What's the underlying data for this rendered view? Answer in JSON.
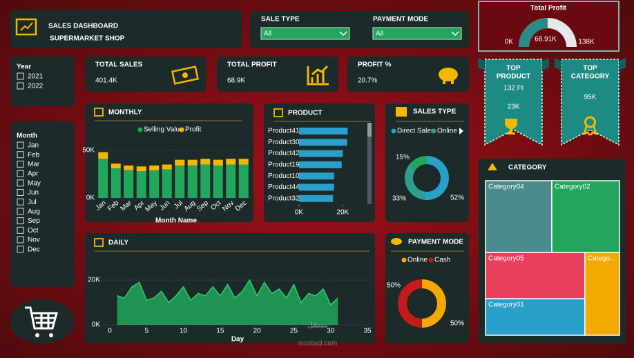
{
  "header": {
    "title": "SALES DASHBOARD",
    "subtitle": "SUPERMARKET SHOP"
  },
  "filters": [
    {
      "label": "SALE TYPE",
      "value": "All"
    },
    {
      "label": "PAYMENT MODE",
      "value": "All"
    }
  ],
  "gauge": {
    "title": "Total Profit",
    "min": 0,
    "max": 138,
    "value": 68.91,
    "min_label": "0K",
    "max_label": "138K",
    "value_label": "68.91K",
    "color": "#2a8a8a"
  },
  "year": {
    "title": "Year",
    "options": [
      "2021",
      "2022"
    ]
  },
  "month": {
    "title": "Month",
    "options": [
      "Jan",
      "Feb",
      "Mar",
      "Apr",
      "May",
      "Jun",
      "Jul",
      "Aug",
      "Sep",
      "Oct",
      "Nov",
      "Dec"
    ]
  },
  "kpis": [
    {
      "label": "TOTAL SALES",
      "value": "401.4K"
    },
    {
      "label": "TOTAL PROFIT",
      "value": "68.9K"
    },
    {
      "label": "PROFIT %",
      "value": "20.7%"
    }
  ],
  "top_product": {
    "title": [
      "TOP",
      "PRODUCT"
    ],
    "name": "132  Ft",
    "value": "23K"
  },
  "top_category": {
    "title": [
      "TOP",
      "CATEGORY"
    ],
    "value": "95K"
  },
  "monthly": {
    "title": "MONTHLY",
    "type": "bar",
    "stacked": true,
    "categories": [
      "Jan",
      "Feb",
      "Mar",
      "Apr",
      "May",
      "Jun",
      "Jul",
      "Aug",
      "Sep",
      "Oct",
      "Nov",
      "Dec"
    ],
    "series": [
      {
        "name": "Selling Value",
        "color": "#21a65b",
        "values": [
          41,
          31,
          29,
          28,
          29,
          30,
          34,
          34,
          35,
          34,
          35,
          35
        ]
      },
      {
        "name": "Profit",
        "color": "#f5b800",
        "values": [
          7,
          5,
          5,
          5,
          5,
          5,
          6,
          6,
          6,
          6,
          6,
          6
        ]
      }
    ],
    "x_label": "Month Name",
    "ylim": [
      0,
      65
    ],
    "yticks": [
      {
        "value": 0,
        "label": "0K"
      },
      {
        "value": 50,
        "label": "50K"
      }
    ]
  },
  "product": {
    "title": "PRODUCT",
    "type": "bar",
    "orientation": "horizontal",
    "categories": [
      "Product41",
      "Product30",
      "Product42",
      "Product19",
      "Product10",
      "Product44",
      "Product32"
    ],
    "values": [
      22.2,
      22,
      20,
      19.5,
      16,
      16,
      15.5
    ],
    "color": "#2a9fc9",
    "xlim": [
      0,
      30
    ],
    "xticks": [
      {
        "value": 0,
        "label": "0K"
      },
      {
        "value": 20,
        "label": "20K"
      }
    ]
  },
  "sales_type": {
    "title": "SALES TYPE",
    "type": "pie",
    "donut": true,
    "names": [
      "Direct Sales",
      "Online",
      null
    ],
    "values": [
      52,
      33,
      15
    ],
    "value_labels": [
      "52%",
      "33%",
      "15%"
    ],
    "colors": [
      "#2a9fc9",
      "#2e9e8e",
      "#21a65b"
    ]
  },
  "payment": {
    "title": "PAYMENT MODE",
    "type": "pie",
    "donut": true,
    "names": [
      "Online",
      "Cash"
    ],
    "values": [
      50,
      50
    ],
    "value_labels": [
      "50%",
      "50%"
    ],
    "colors": [
      "#f5a800",
      "#c41a1a"
    ]
  },
  "daily": {
    "title": "DAILY",
    "type": "area",
    "x_label": "Day",
    "x": [
      1,
      2,
      3,
      4,
      5,
      6,
      7,
      8,
      9,
      10,
      11,
      12,
      13,
      14,
      15,
      16,
      17,
      18,
      19,
      20,
      21,
      22,
      23,
      24,
      25,
      26,
      27,
      28,
      29,
      30,
      31
    ],
    "values": [
      13,
      12,
      17,
      19,
      11,
      12,
      15,
      10,
      13,
      17,
      11,
      14,
      13,
      17,
      13,
      18,
      12,
      15,
      20,
      13,
      19,
      14,
      16,
      12,
      18,
      10,
      14,
      13,
      16,
      9,
      12
    ],
    "color": "#21a65b",
    "xlim": [
      0,
      35
    ],
    "xticks": [
      0,
      5,
      10,
      15,
      20,
      25,
      30,
      35
    ],
    "ylim": [
      0,
      29
    ],
    "yticks": [
      {
        "value": 0,
        "label": "0K"
      },
      {
        "value": 20,
        "label": "20K"
      }
    ]
  },
  "category": {
    "title": "CATEGORY",
    "type": "treemap",
    "categories": [
      "Category04",
      "Category02",
      "Category05",
      "Category01",
      "Catego..."
    ],
    "values": [
      93,
      95,
      90,
      71,
      56
    ],
    "colors": [
      "#4a8c8c",
      "#21a65b",
      "#e8405b",
      "#2a9fc9",
      "#f2a900"
    ]
  },
  "watermark": {
    "text": "مستقل",
    "url": "mostaql.com"
  }
}
